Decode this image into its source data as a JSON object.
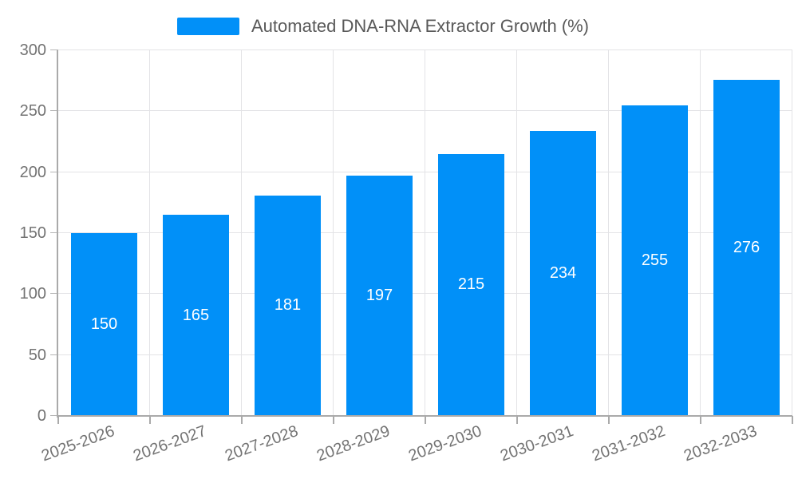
{
  "legend": {
    "label": "Automated DNA-RNA Extractor Growth (%)"
  },
  "colors": {
    "bar": "#0190f8",
    "axis_line": "#aaaaaa",
    "grid_line": "#e3e3e6",
    "tick_line": "#b5b5b5",
    "axis_label_text": "#737373",
    "legend_text": "#595959",
    "bar_label_text": "#ffffff",
    "background": "#ffffff"
  },
  "chart_data": {
    "type": "bar",
    "title": "Automated DNA-RNA Extractor Growth (%)",
    "categories": [
      "2025-2026",
      "2026-2027",
      "2027-2028",
      "2028-2029",
      "2029-2030",
      "2030-2031",
      "2031-2032",
      "2032-2033"
    ],
    "values": [
      150,
      165,
      181,
      197,
      215,
      234,
      255,
      276
    ],
    "xlabel": "",
    "ylabel": "",
    "ylim": [
      0,
      300
    ],
    "ytick_step": 50,
    "yticks": [
      0,
      50,
      100,
      150,
      200,
      250,
      300
    ],
    "grid": true,
    "legend_position": "top-center",
    "bar_value_labels_inside": true,
    "x_label_rotation_deg": -20
  }
}
